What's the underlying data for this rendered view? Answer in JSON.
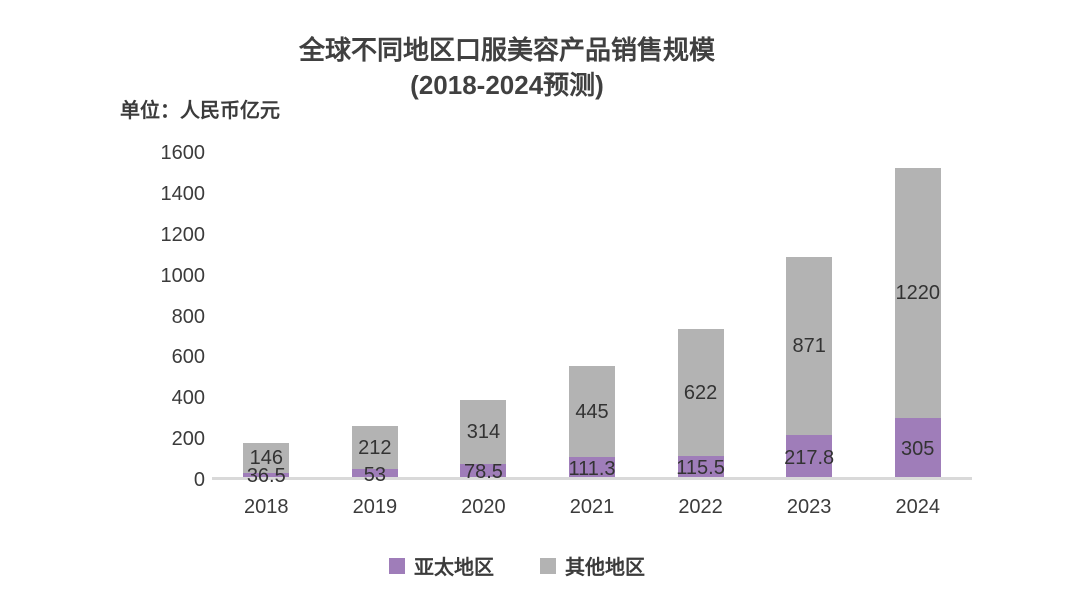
{
  "title": {
    "line1": "全球不同地区口服美容产品销售规模",
    "line2": "(2018-2024预测)"
  },
  "unit_label": "单位：人民币亿元",
  "colors": {
    "apac": "#9f7db9",
    "other": "#b3b3b3",
    "axis_line": "#d9d9d9",
    "text": "#3b3b3b",
    "value_label": "#333333"
  },
  "chart_data": {
    "type": "bar",
    "stacked": true,
    "title": "全球不同地区口服美容产品销售规模 (2018-2024预测)",
    "unit": "人民币亿元",
    "categories": [
      "2018",
      "2019",
      "2020",
      "2021",
      "2022",
      "2023",
      "2024"
    ],
    "series": [
      {
        "name": "亚太地区",
        "key": "apac",
        "values": [
          36.5,
          53,
          78.5,
          111.3,
          115.5,
          217.8,
          305
        ]
      },
      {
        "name": "其他地区",
        "key": "other",
        "values": [
          146,
          212,
          314,
          445,
          622,
          871,
          1220
        ]
      }
    ],
    "y_ticks": [
      0,
      200,
      400,
      600,
      800,
      1000,
      1200,
      1400,
      1600
    ],
    "ylim": [
      0,
      1600
    ],
    "grid": false,
    "legend_position": "bottom",
    "data_labels": true
  }
}
